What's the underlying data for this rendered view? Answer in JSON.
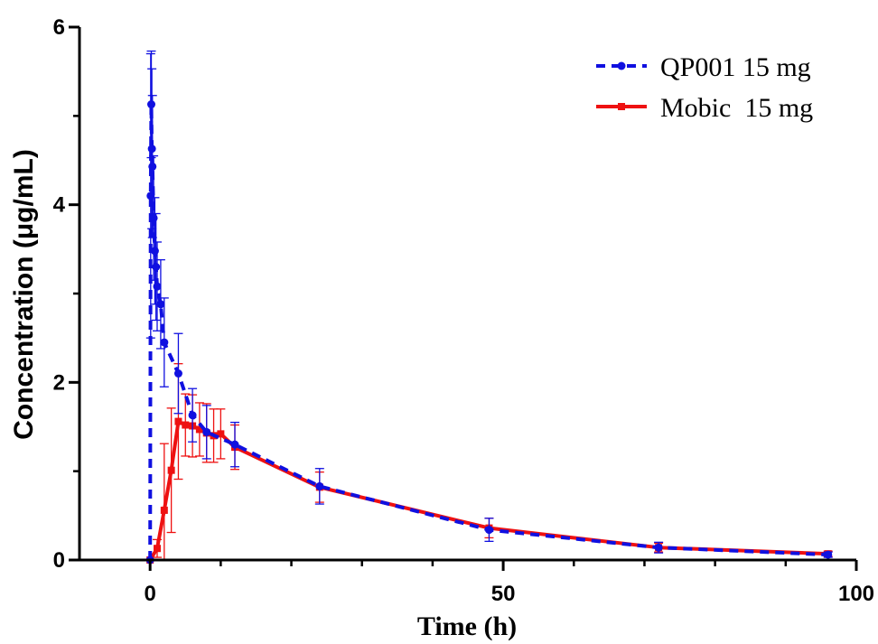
{
  "chart_data": {
    "type": "line",
    "xlabel": "Time (h)",
    "ylabel": "Concentration (μg/mL)",
    "xlim": [
      -10,
      100
    ],
    "ylim": [
      0,
      6
    ],
    "x_ticks": [
      0,
      50,
      100
    ],
    "x_tick_labels": [
      "0",
      "50",
      "100"
    ],
    "y_ticks": [
      0,
      2,
      4,
      6
    ],
    "y_tick_labels": [
      "0",
      "2",
      "4",
      "6"
    ],
    "grid": false,
    "legend_position": "top-right",
    "series": [
      {
        "name": "QP001 15 mg",
        "color": "#1010e0",
        "line_style": "dashed",
        "marker": "circle",
        "points": [
          {
            "x": 0,
            "y": 0,
            "err": 0
          },
          {
            "x": 0.08,
            "y": 4.1,
            "err": 1.6
          },
          {
            "x": 0.17,
            "y": 5.13,
            "err": 0.6
          },
          {
            "x": 0.25,
            "y": 4.63,
            "err": 0.9
          },
          {
            "x": 0.33,
            "y": 4.43,
            "err": 0.8
          },
          {
            "x": 0.5,
            "y": 3.85,
            "err": 0.7
          },
          {
            "x": 0.67,
            "y": 3.48,
            "err": 0.6
          },
          {
            "x": 0.83,
            "y": 3.3,
            "err": 0.6
          },
          {
            "x": 1,
            "y": 3.08,
            "err": 0.5
          },
          {
            "x": 1.5,
            "y": 2.88,
            "err": 0.5
          },
          {
            "x": 2,
            "y": 2.45,
            "err": 0.5
          },
          {
            "x": 4,
            "y": 2.1,
            "err": 0.45
          },
          {
            "x": 6,
            "y": 1.63,
            "err": 0.3
          },
          {
            "x": 8,
            "y": 1.44,
            "err": 0.3
          },
          {
            "x": 12,
            "y": 1.3,
            "err": 0.25
          },
          {
            "x": 24,
            "y": 0.83,
            "err": 0.2
          },
          {
            "x": 48,
            "y": 0.34,
            "err": 0.13
          },
          {
            "x": 72,
            "y": 0.14,
            "err": 0.06
          },
          {
            "x": 96,
            "y": 0.06,
            "err": 0.03
          }
        ]
      },
      {
        "name": "Mobic  15 mg",
        "color": "#ee1111",
        "line_style": "solid",
        "marker": "square",
        "points": [
          {
            "x": 0,
            "y": 0,
            "err": 0
          },
          {
            "x": 1,
            "y": 0.13,
            "err": 0.1
          },
          {
            "x": 2,
            "y": 0.56,
            "err": 0.75
          },
          {
            "x": 3,
            "y": 1.01,
            "err": 0.7
          },
          {
            "x": 4,
            "y": 1.56,
            "err": 0.65
          },
          {
            "x": 5,
            "y": 1.52,
            "err": 0.35
          },
          {
            "x": 6,
            "y": 1.51,
            "err": 0.35
          },
          {
            "x": 7,
            "y": 1.47,
            "err": 0.3
          },
          {
            "x": 8,
            "y": 1.43,
            "err": 0.33
          },
          {
            "x": 9,
            "y": 1.4,
            "err": 0.3
          },
          {
            "x": 10,
            "y": 1.42,
            "err": 0.28
          },
          {
            "x": 12,
            "y": 1.27,
            "err": 0.25
          },
          {
            "x": 24,
            "y": 0.82,
            "err": 0.17
          },
          {
            "x": 48,
            "y": 0.36,
            "err": 0.11
          },
          {
            "x": 72,
            "y": 0.14,
            "err": 0.05
          },
          {
            "x": 96,
            "y": 0.07,
            "err": 0.03
          }
        ]
      }
    ]
  }
}
